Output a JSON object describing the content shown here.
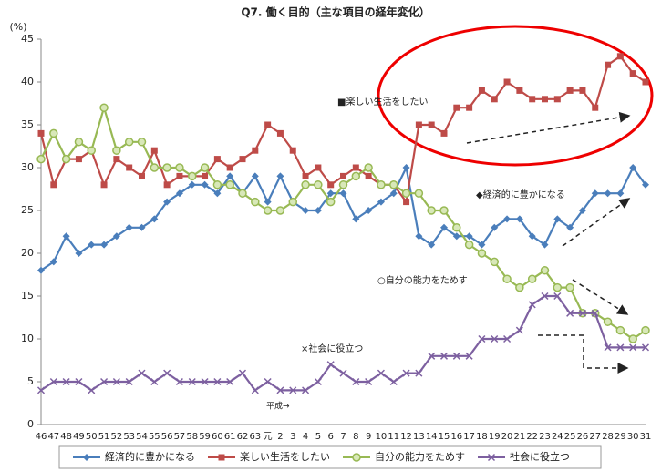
{
  "chart_data": {
    "type": "line",
    "title": "Q7. 働く目的（主な項目の経年変化）",
    "y_label": "(%)",
    "categories": [
      "46",
      "47",
      "48",
      "49",
      "50",
      "51",
      "52",
      "53",
      "54",
      "55",
      "56",
      "57",
      "58",
      "59",
      "60",
      "61",
      "62",
      "63",
      "元",
      "2",
      "3",
      "4",
      "5",
      "6",
      "7",
      "8",
      "9",
      "10",
      "11",
      "12",
      "13",
      "14",
      "15",
      "16",
      "17",
      "18",
      "19",
      "20",
      "21",
      "22",
      "23",
      "24",
      "25",
      "26",
      "27",
      "28",
      "29",
      "30",
      "31"
    ],
    "series": [
      {
        "name": "経済的に豊かになる",
        "color": "#4a7ebb",
        "marker": "diamond",
        "values": [
          18,
          19,
          22,
          20,
          21,
          21,
          22,
          23,
          23,
          24,
          26,
          27,
          28,
          28,
          27,
          29,
          27,
          29,
          26,
          29,
          26,
          25,
          25,
          27,
          27,
          24,
          25,
          26,
          27,
          30,
          22,
          21,
          23,
          22,
          22,
          21,
          23,
          24,
          24,
          22,
          21,
          24,
          23,
          25,
          27,
          27,
          27,
          30,
          28
        ]
      },
      {
        "name": "楽しい生活をしたい",
        "color": "#be4b48",
        "marker": "square",
        "values": [
          34,
          28,
          31,
          31,
          32,
          28,
          31,
          30,
          29,
          32,
          28,
          29,
          29,
          29,
          31,
          30,
          31,
          32,
          35,
          34,
          32,
          29,
          30,
          28,
          29,
          30,
          29,
          28,
          28,
          26,
          35,
          35,
          34,
          37,
          37,
          39,
          38,
          40,
          39,
          38,
          38,
          38,
          39,
          39,
          37,
          42,
          43,
          41,
          40
        ]
      },
      {
        "name": "自分の能力をためす",
        "color": "#98b954",
        "marker": "circle",
        "values": [
          31,
          34,
          31,
          33,
          32,
          37,
          32,
          33,
          33,
          30,
          30,
          30,
          29,
          30,
          28,
          28,
          27,
          26,
          25,
          25,
          26,
          28,
          28,
          26,
          28,
          29,
          30,
          28,
          28,
          27,
          27,
          25,
          25,
          23,
          21,
          20,
          19,
          17,
          16,
          17,
          18,
          16,
          16,
          13,
          13,
          12,
          11,
          10,
          11
        ]
      },
      {
        "name": "社会に役立つ",
        "color": "#7d60a0",
        "marker": "x",
        "values": [
          4,
          5,
          5,
          5,
          4,
          5,
          5,
          5,
          6,
          5,
          6,
          5,
          5,
          5,
          5,
          5,
          6,
          4,
          5,
          4,
          4,
          4,
          5,
          7,
          6,
          5,
          5,
          6,
          5,
          6,
          6,
          8,
          8,
          8,
          8,
          10,
          10,
          10,
          11,
          14,
          15,
          15,
          13,
          13,
          13,
          9,
          9,
          9,
          9
        ]
      }
    ],
    "annotations": [
      "■楽しい生活をしたい",
      "◆経済的に豊かになる",
      "○自分の能力をためす",
      "×社会に役立つ",
      "平成→"
    ],
    "ylim": [
      0,
      45
    ],
    "yticks": [
      0,
      5,
      10,
      15,
      20,
      25,
      30,
      35,
      40,
      45
    ]
  }
}
